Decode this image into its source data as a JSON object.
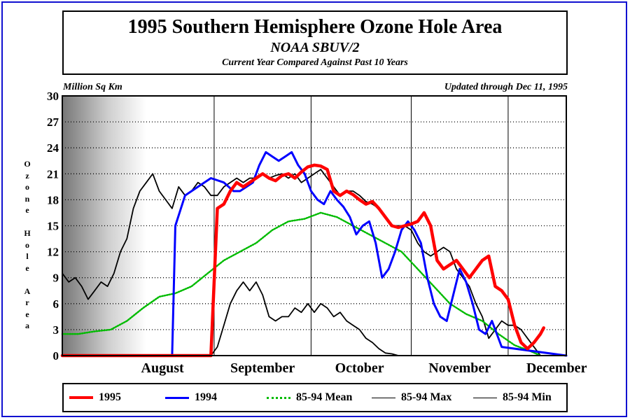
{
  "title": "1995 Southern Hemisphere Ozone Hole Area",
  "subtitle": "NOAA SBUV/2",
  "subtitle2": "Current Year Compared Against Past 10 Years",
  "unit_label": "Million Sq Km",
  "updated_label": "Updated through Dec 11, 1995",
  "ylabel": "Ozone Hole Area",
  "colors": {
    "frame": "#1010d0",
    "series_1995": "#ff0000",
    "series_1994": "#0000ff",
    "series_mean": "#00bb00",
    "series_max": "#000000",
    "series_min": "#000000"
  },
  "chart_data": {
    "type": "line",
    "xlabel": "",
    "ylabel": "Ozone Hole Area",
    "x_unit": "day of 1995",
    "xlim": [
      "1995-07-15",
      "1995-12-18"
    ],
    "ylim": [
      0,
      30
    ],
    "yticks": [
      0,
      3,
      6,
      9,
      12,
      15,
      18,
      21,
      24,
      27,
      30
    ],
    "grid": true,
    "shaded_period": [
      "1995-07-15",
      "1995-08-10"
    ],
    "month_labels": [
      {
        "label": "August",
        "x": "1995-08-15"
      },
      {
        "label": "September",
        "x": "1995-09-15"
      },
      {
        "label": "October",
        "x": "1995-10-15"
      },
      {
        "label": "November",
        "x": "1995-11-15"
      },
      {
        "label": "December",
        "x": "1995-12-15"
      }
    ],
    "month_boundaries": [
      "1995-08-31",
      "1995-09-30",
      "1995-10-31",
      "1995-11-30"
    ],
    "legend_position": "bottom",
    "series": [
      {
        "name": "1995",
        "x": [
          "1995-07-15",
          "1995-08-29",
          "1995-08-30",
          "1995-09-01",
          "1995-09-03",
          "1995-09-05",
          "1995-09-07",
          "1995-09-09",
          "1995-09-11",
          "1995-09-13",
          "1995-09-15",
          "1995-09-17",
          "1995-09-19",
          "1995-09-21",
          "1995-09-23",
          "1995-09-25",
          "1995-09-27",
          "1995-09-29",
          "1995-10-01",
          "1995-10-03",
          "1995-10-05",
          "1995-10-07",
          "1995-10-09",
          "1995-10-11",
          "1995-10-13",
          "1995-10-15",
          "1995-10-17",
          "1995-10-19",
          "1995-10-21",
          "1995-10-23",
          "1995-10-25",
          "1995-10-27",
          "1995-10-29",
          "1995-10-31",
          "1995-11-02",
          "1995-11-04",
          "1995-11-06",
          "1995-11-08",
          "1995-11-10",
          "1995-11-12",
          "1995-11-14",
          "1995-11-16",
          "1995-11-18",
          "1995-11-20",
          "1995-11-22",
          "1995-11-24",
          "1995-11-26",
          "1995-11-28",
          "1995-11-30",
          "1995-12-02",
          "1995-12-04",
          "1995-12-06",
          "1995-12-08",
          "1995-12-10",
          "1995-12-11"
        ],
        "y": [
          0,
          0,
          0,
          17,
          17.5,
          19,
          20,
          19.5,
          20,
          20.5,
          21,
          20.5,
          20.2,
          20.8,
          21,
          20.5,
          21.2,
          21.8,
          22,
          21.9,
          21.5,
          19,
          18.5,
          19,
          18.6,
          18,
          17.5,
          17.8,
          17,
          16,
          15,
          14.8,
          15,
          15.2,
          15.5,
          16.5,
          15,
          11,
          10,
          10.5,
          11,
          10,
          9,
          10,
          11,
          11.5,
          8,
          7.5,
          6.5,
          3.5,
          1.5,
          0.8,
          1.5,
          2.5,
          3.2
        ]
      },
      {
        "name": "1994",
        "x": [
          "1995-07-15",
          "1995-08-18",
          "1995-08-19",
          "1995-08-22",
          "1995-08-26",
          "1995-08-30",
          "1995-09-03",
          "1995-09-06",
          "1995-09-08",
          "1995-09-10",
          "1995-09-12",
          "1995-09-14",
          "1995-09-16",
          "1995-09-18",
          "1995-09-20",
          "1995-09-22",
          "1995-09-24",
          "1995-09-26",
          "1995-09-28",
          "1995-09-30",
          "1995-10-02",
          "1995-10-04",
          "1995-10-06",
          "1995-10-08",
          "1995-10-10",
          "1995-10-12",
          "1995-10-14",
          "1995-10-16",
          "1995-10-18",
          "1995-10-20",
          "1995-10-22",
          "1995-10-24",
          "1995-10-26",
          "1995-10-28",
          "1995-10-30",
          "1995-11-01",
          "1995-11-03",
          "1995-11-05",
          "1995-11-07",
          "1995-11-09",
          "1995-11-11",
          "1995-11-13",
          "1995-11-15",
          "1995-11-17",
          "1995-11-19",
          "1995-11-21",
          "1995-11-23",
          "1995-11-25",
          "1995-11-28",
          "1995-12-18"
        ],
        "y": [
          0,
          0,
          15,
          18.5,
          19.5,
          20.5,
          20,
          19,
          19,
          19.5,
          20,
          22,
          23.5,
          23,
          22.5,
          23,
          23.5,
          22,
          21,
          19,
          18,
          17.5,
          19,
          18,
          17.2,
          16,
          14,
          15,
          15.5,
          13,
          9,
          10,
          12,
          14.5,
          15.5,
          14.5,
          13,
          9,
          6,
          4.5,
          4,
          7,
          10,
          8.5,
          6,
          3,
          2.5,
          4,
          1,
          0
        ]
      },
      {
        "name": "85-94 Mean",
        "x": [
          "1995-07-15",
          "1995-07-20",
          "1995-07-25",
          "1995-07-30",
          "1995-08-04",
          "1995-08-09",
          "1995-08-14",
          "1995-08-19",
          "1995-08-24",
          "1995-08-29",
          "1995-09-03",
          "1995-09-08",
          "1995-09-13",
          "1995-09-18",
          "1995-09-23",
          "1995-09-28",
          "1995-10-03",
          "1995-10-08",
          "1995-10-13",
          "1995-10-18",
          "1995-10-23",
          "1995-10-28",
          "1995-11-02",
          "1995-11-07",
          "1995-11-12",
          "1995-11-17",
          "1995-11-22",
          "1995-11-27",
          "1995-12-02",
          "1995-12-07",
          "1995-12-10"
        ],
        "y": [
          2.5,
          2.5,
          2.8,
          3,
          4,
          5.5,
          6.8,
          7.2,
          8,
          9.5,
          11,
          12,
          13,
          14.5,
          15.5,
          15.8,
          16.5,
          16,
          15,
          14,
          13,
          12,
          10,
          8,
          6,
          4.8,
          4,
          2.5,
          1.2,
          0.5,
          0
        ]
      },
      {
        "name": "85-94 Max",
        "x": [
          "1995-07-15",
          "1995-07-17",
          "1995-07-19",
          "1995-07-21",
          "1995-07-23",
          "1995-07-25",
          "1995-07-27",
          "1995-07-29",
          "1995-07-31",
          "1995-08-02",
          "1995-08-04",
          "1995-08-06",
          "1995-08-08",
          "1995-08-10",
          "1995-08-12",
          "1995-08-14",
          "1995-08-16",
          "1995-08-18",
          "1995-08-20",
          "1995-08-22",
          "1995-08-24",
          "1995-08-26",
          "1995-08-28",
          "1995-08-30",
          "1995-09-01",
          "1995-09-03",
          "1995-09-05",
          "1995-09-07",
          "1995-09-09",
          "1995-09-11",
          "1995-09-13",
          "1995-09-15",
          "1995-09-17",
          "1995-09-19",
          "1995-09-21",
          "1995-09-23",
          "1995-09-25",
          "1995-09-27",
          "1995-09-29",
          "1995-10-01",
          "1995-10-03",
          "1995-10-05",
          "1995-10-07",
          "1995-10-09",
          "1995-10-11",
          "1995-10-13",
          "1995-10-15",
          "1995-10-17",
          "1995-10-19",
          "1995-10-21",
          "1995-10-23",
          "1995-10-25",
          "1995-10-27",
          "1995-10-29",
          "1995-10-31",
          "1995-11-02",
          "1995-11-04",
          "1995-11-06",
          "1995-11-08",
          "1995-11-10",
          "1995-11-12",
          "1995-11-14",
          "1995-11-16",
          "1995-11-18",
          "1995-11-20",
          "1995-11-22",
          "1995-11-24",
          "1995-11-26",
          "1995-11-28",
          "1995-11-30",
          "1995-12-02",
          "1995-12-04",
          "1995-12-06",
          "1995-12-08",
          "1995-12-10"
        ],
        "y": [
          9.5,
          8.5,
          9,
          8,
          6.5,
          7.5,
          8.5,
          8,
          9.5,
          12,
          13.5,
          17,
          19,
          20,
          21,
          19,
          18,
          17,
          19.5,
          18.5,
          19,
          20,
          19.5,
          18.5,
          18.5,
          19.5,
          20,
          20.5,
          20,
          20.5,
          20.5,
          21,
          20.5,
          20.8,
          21,
          20.5,
          21,
          20,
          20.5,
          21,
          21.5,
          20.5,
          19.5,
          18.5,
          19,
          19,
          18.5,
          17.8,
          17.5,
          17,
          16,
          15,
          15,
          15,
          14.5,
          13,
          12,
          11.5,
          12,
          12.5,
          12,
          10,
          9,
          8,
          6,
          4.5,
          2,
          3,
          4,
          3.5,
          3.5,
          3,
          2,
          1,
          0
        ]
      },
      {
        "name": "85-94 Min",
        "x": [
          "1995-07-15",
          "1995-08-30",
          "1995-09-01",
          "1995-09-03",
          "1995-09-05",
          "1995-09-07",
          "1995-09-09",
          "1995-09-11",
          "1995-09-13",
          "1995-09-15",
          "1995-09-17",
          "1995-09-19",
          "1995-09-21",
          "1995-09-23",
          "1995-09-25",
          "1995-09-27",
          "1995-09-29",
          "1995-10-01",
          "1995-10-03",
          "1995-10-05",
          "1995-10-07",
          "1995-10-09",
          "1995-10-11",
          "1995-10-13",
          "1995-10-15",
          "1995-10-17",
          "1995-10-19",
          "1995-10-21",
          "1995-10-23",
          "1995-10-25",
          "1995-10-27",
          "1995-12-18"
        ],
        "y": [
          0,
          0,
          1,
          3.5,
          6,
          7.5,
          8.5,
          7.5,
          8.5,
          7,
          4.5,
          4,
          4.5,
          4.5,
          5.5,
          5,
          6,
          5,
          6,
          5.5,
          4.5,
          5,
          4,
          3.5,
          3,
          2,
          1.5,
          0.8,
          0.3,
          0.2,
          0,
          0
        ]
      }
    ]
  },
  "legend": [
    {
      "label": "1995"
    },
    {
      "label": "1994"
    },
    {
      "label": "85-94 Mean"
    },
    {
      "label": "85-94 Max"
    },
    {
      "label": "85-94 Min"
    }
  ]
}
